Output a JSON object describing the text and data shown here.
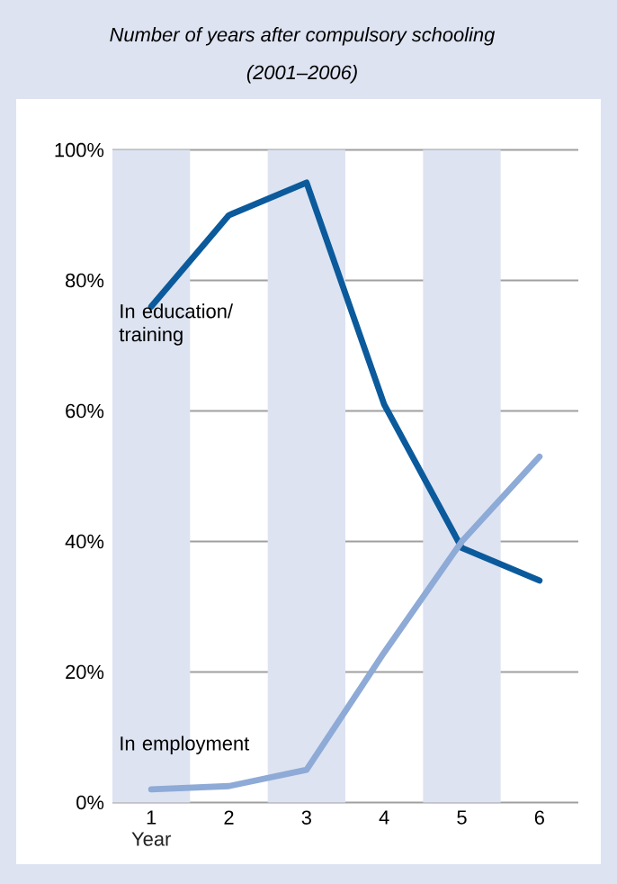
{
  "chart_data": {
    "type": "line",
    "title": "Number of years after compulsory schooling",
    "subtitle": "(2001–2006)",
    "xlabel": "Year",
    "x": [
      1,
      2,
      3,
      4,
      5,
      6
    ],
    "xlim": [
      0.5,
      6.5
    ],
    "xticks": [
      1,
      2,
      3,
      4,
      5,
      6
    ],
    "ylim": [
      0,
      100
    ],
    "yticks": [
      {
        "value": 0,
        "label": "0%"
      },
      {
        "value": 20,
        "label": "20%"
      },
      {
        "value": 40,
        "label": "40%"
      },
      {
        "value": 60,
        "label": "60%"
      },
      {
        "value": 80,
        "label": "80%"
      },
      {
        "value": 100,
        "label": "100%"
      }
    ],
    "grid": "y",
    "line_style": "solid",
    "bands": [
      {
        "axis": "x",
        "from": 0.5,
        "to": 1.5,
        "color": "#dde3f1"
      },
      {
        "axis": "x",
        "from": 2.5,
        "to": 3.5,
        "color": "#dde3f1"
      },
      {
        "axis": "x",
        "from": 4.5,
        "to": 5.5,
        "color": "#dde3f1"
      }
    ],
    "series": [
      {
        "name": "In education/training",
        "color": "#0b5a9c",
        "values": [
          76,
          90,
          95,
          61,
          39,
          34
        ]
      },
      {
        "name": "In employment",
        "color": "#8eaad6",
        "values": [
          2,
          2.5,
          5,
          23,
          40,
          53
        ]
      }
    ]
  }
}
